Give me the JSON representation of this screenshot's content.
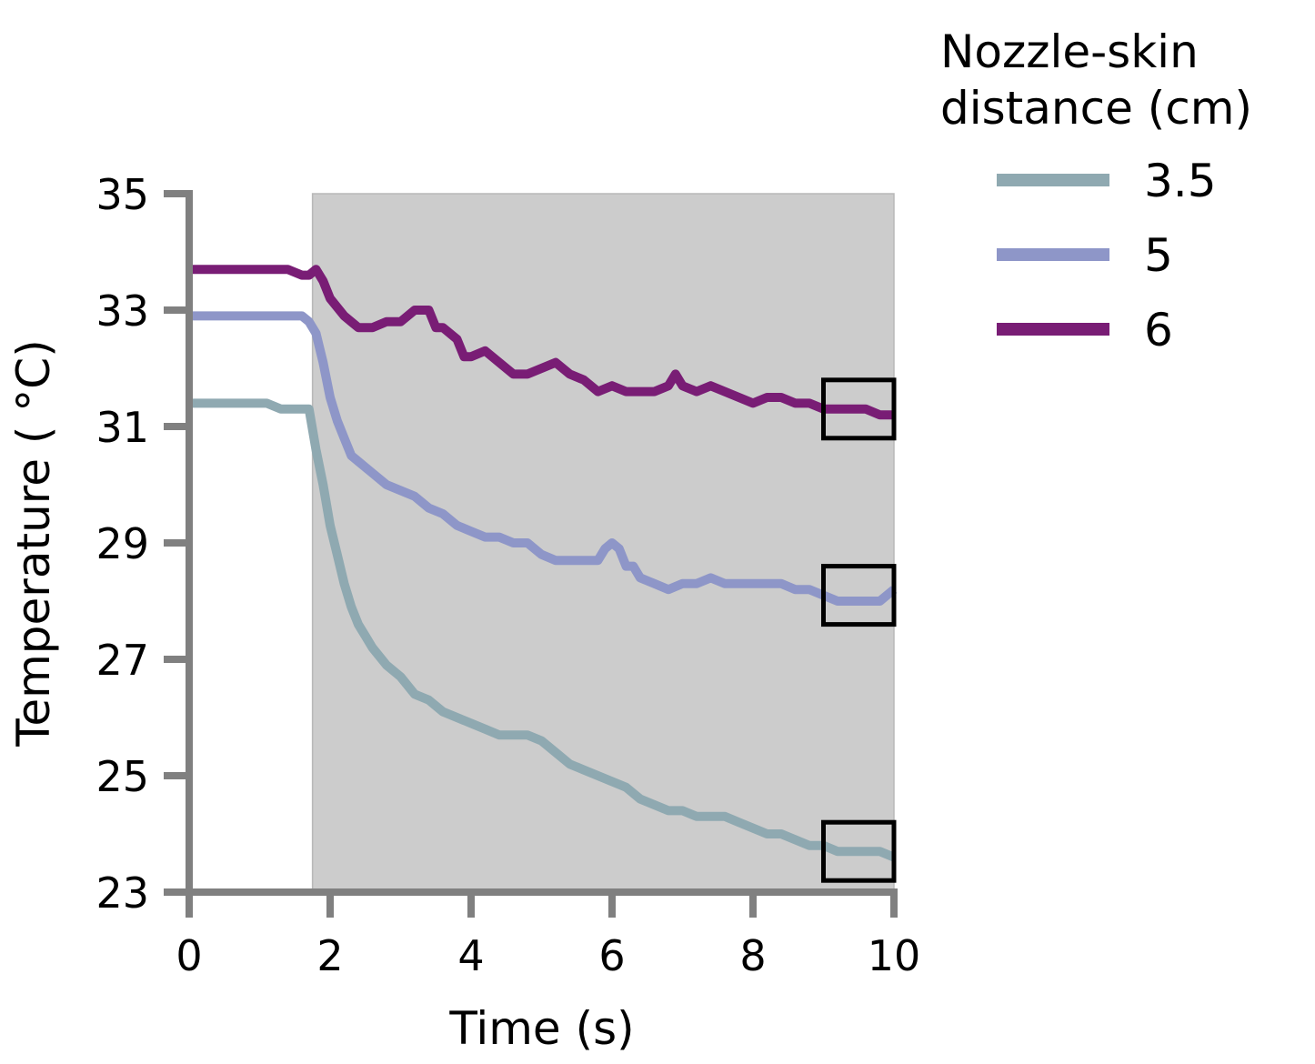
{
  "chart_data": {
    "type": "line",
    "xlabel": "Time (s)",
    "ylabel": "Temperature ( °C)",
    "xlim": [
      0,
      10
    ],
    "ylim": [
      23,
      35
    ],
    "xticks": [
      "0",
      "2",
      "4",
      "6",
      "8",
      "10"
    ],
    "yticks": [
      "23",
      "25",
      "27",
      "29",
      "31",
      "33",
      "35"
    ],
    "grid": false,
    "shaded_region": {
      "x": [
        1.75,
        10
      ],
      "color": "#cccccc"
    },
    "highlight_boxes": [
      {
        "x": [
          9.0,
          10.0
        ],
        "y": [
          30.8,
          31.8
        ]
      },
      {
        "x": [
          9.0,
          10.0
        ],
        "y": [
          27.6,
          28.6
        ]
      },
      {
        "x": [
          9.0,
          10.0
        ],
        "y": [
          23.2,
          24.2
        ]
      }
    ],
    "legend": {
      "title": "Nozzle-skin\ndistance (cm)",
      "position": "top-right, outside"
    },
    "series": [
      {
        "name": "3.5",
        "color": "#8fa9b1",
        "x": [
          0,
          0.2,
          0.4,
          0.6,
          0.8,
          1.0,
          1.1,
          1.3,
          1.5,
          1.6,
          1.7,
          1.8,
          1.9,
          2.0,
          2.1,
          2.2,
          2.3,
          2.4,
          2.5,
          2.6,
          2.8,
          3.0,
          3.2,
          3.4,
          3.6,
          3.8,
          4.0,
          4.2,
          4.4,
          4.6,
          4.8,
          5.0,
          5.2,
          5.4,
          5.6,
          5.8,
          6.0,
          6.2,
          6.4,
          6.6,
          6.8,
          6.9,
          7.0,
          7.2,
          7.4,
          7.6,
          7.8,
          8.0,
          8.2,
          8.4,
          8.6,
          8.8,
          9.0,
          9.2,
          9.4,
          9.6,
          9.8,
          10.0
        ],
        "values": [
          31.4,
          31.4,
          31.4,
          31.4,
          31.4,
          31.4,
          31.4,
          31.3,
          31.3,
          31.3,
          31.3,
          30.6,
          30.0,
          29.3,
          28.8,
          28.3,
          27.9,
          27.6,
          27.4,
          27.2,
          26.9,
          26.7,
          26.4,
          26.3,
          26.1,
          26.0,
          25.9,
          25.8,
          25.7,
          25.7,
          25.7,
          25.6,
          25.4,
          25.2,
          25.1,
          25.0,
          24.9,
          24.8,
          24.6,
          24.5,
          24.4,
          24.4,
          24.4,
          24.3,
          24.3,
          24.3,
          24.2,
          24.1,
          24.0,
          24.0,
          23.9,
          23.8,
          23.8,
          23.7,
          23.7,
          23.7,
          23.7,
          23.6
        ]
      },
      {
        "name": "5",
        "color": "#8e96c8",
        "x": [
          0,
          0.2,
          0.4,
          0.6,
          0.8,
          1.0,
          1.2,
          1.4,
          1.6,
          1.7,
          1.8,
          1.9,
          2.0,
          2.1,
          2.2,
          2.3,
          2.4,
          2.6,
          2.8,
          3.0,
          3.2,
          3.4,
          3.6,
          3.8,
          4.0,
          4.2,
          4.4,
          4.6,
          4.8,
          5.0,
          5.2,
          5.4,
          5.6,
          5.8,
          5.9,
          6.0,
          6.1,
          6.2,
          6.3,
          6.4,
          6.6,
          6.8,
          7.0,
          7.2,
          7.4,
          7.6,
          7.8,
          8.0,
          8.2,
          8.4,
          8.6,
          8.8,
          9.0,
          9.2,
          9.4,
          9.6,
          9.8,
          10.0
        ],
        "values": [
          32.9,
          32.9,
          32.9,
          32.9,
          32.9,
          32.9,
          32.9,
          32.9,
          32.9,
          32.8,
          32.6,
          32.1,
          31.5,
          31.1,
          30.8,
          30.5,
          30.4,
          30.2,
          30.0,
          29.9,
          29.8,
          29.6,
          29.5,
          29.3,
          29.2,
          29.1,
          29.1,
          29.0,
          29.0,
          28.8,
          28.7,
          28.7,
          28.7,
          28.7,
          28.9,
          29.0,
          28.9,
          28.6,
          28.6,
          28.4,
          28.3,
          28.2,
          28.3,
          28.3,
          28.4,
          28.3,
          28.3,
          28.3,
          28.3,
          28.3,
          28.2,
          28.2,
          28.1,
          28.0,
          28.0,
          28.0,
          28.0,
          28.2
        ]
      },
      {
        "name": "6",
        "color": "#791d75",
        "x": [
          0,
          0.2,
          0.4,
          0.6,
          0.8,
          1.0,
          1.2,
          1.4,
          1.6,
          1.7,
          1.8,
          1.9,
          2.0,
          2.2,
          2.4,
          2.6,
          2.8,
          3.0,
          3.2,
          3.4,
          3.5,
          3.6,
          3.8,
          3.9,
          4.0,
          4.2,
          4.4,
          4.6,
          4.8,
          5.0,
          5.2,
          5.4,
          5.6,
          5.8,
          6.0,
          6.2,
          6.4,
          6.6,
          6.8,
          6.9,
          7.0,
          7.2,
          7.4,
          7.6,
          7.8,
          8.0,
          8.2,
          8.4,
          8.6,
          8.8,
          9.0,
          9.2,
          9.4,
          9.6,
          9.8,
          10.0
        ],
        "values": [
          33.7,
          33.7,
          33.7,
          33.7,
          33.7,
          33.7,
          33.7,
          33.7,
          33.6,
          33.6,
          33.7,
          33.5,
          33.2,
          32.9,
          32.7,
          32.7,
          32.8,
          32.8,
          33.0,
          33.0,
          32.7,
          32.7,
          32.5,
          32.2,
          32.2,
          32.3,
          32.1,
          31.9,
          31.9,
          32.0,
          32.1,
          31.9,
          31.8,
          31.6,
          31.7,
          31.6,
          31.6,
          31.6,
          31.7,
          31.9,
          31.7,
          31.6,
          31.7,
          31.6,
          31.5,
          31.4,
          31.5,
          31.5,
          31.4,
          31.4,
          31.3,
          31.3,
          31.3,
          31.3,
          31.2,
          31.2
        ]
      }
    ]
  }
}
